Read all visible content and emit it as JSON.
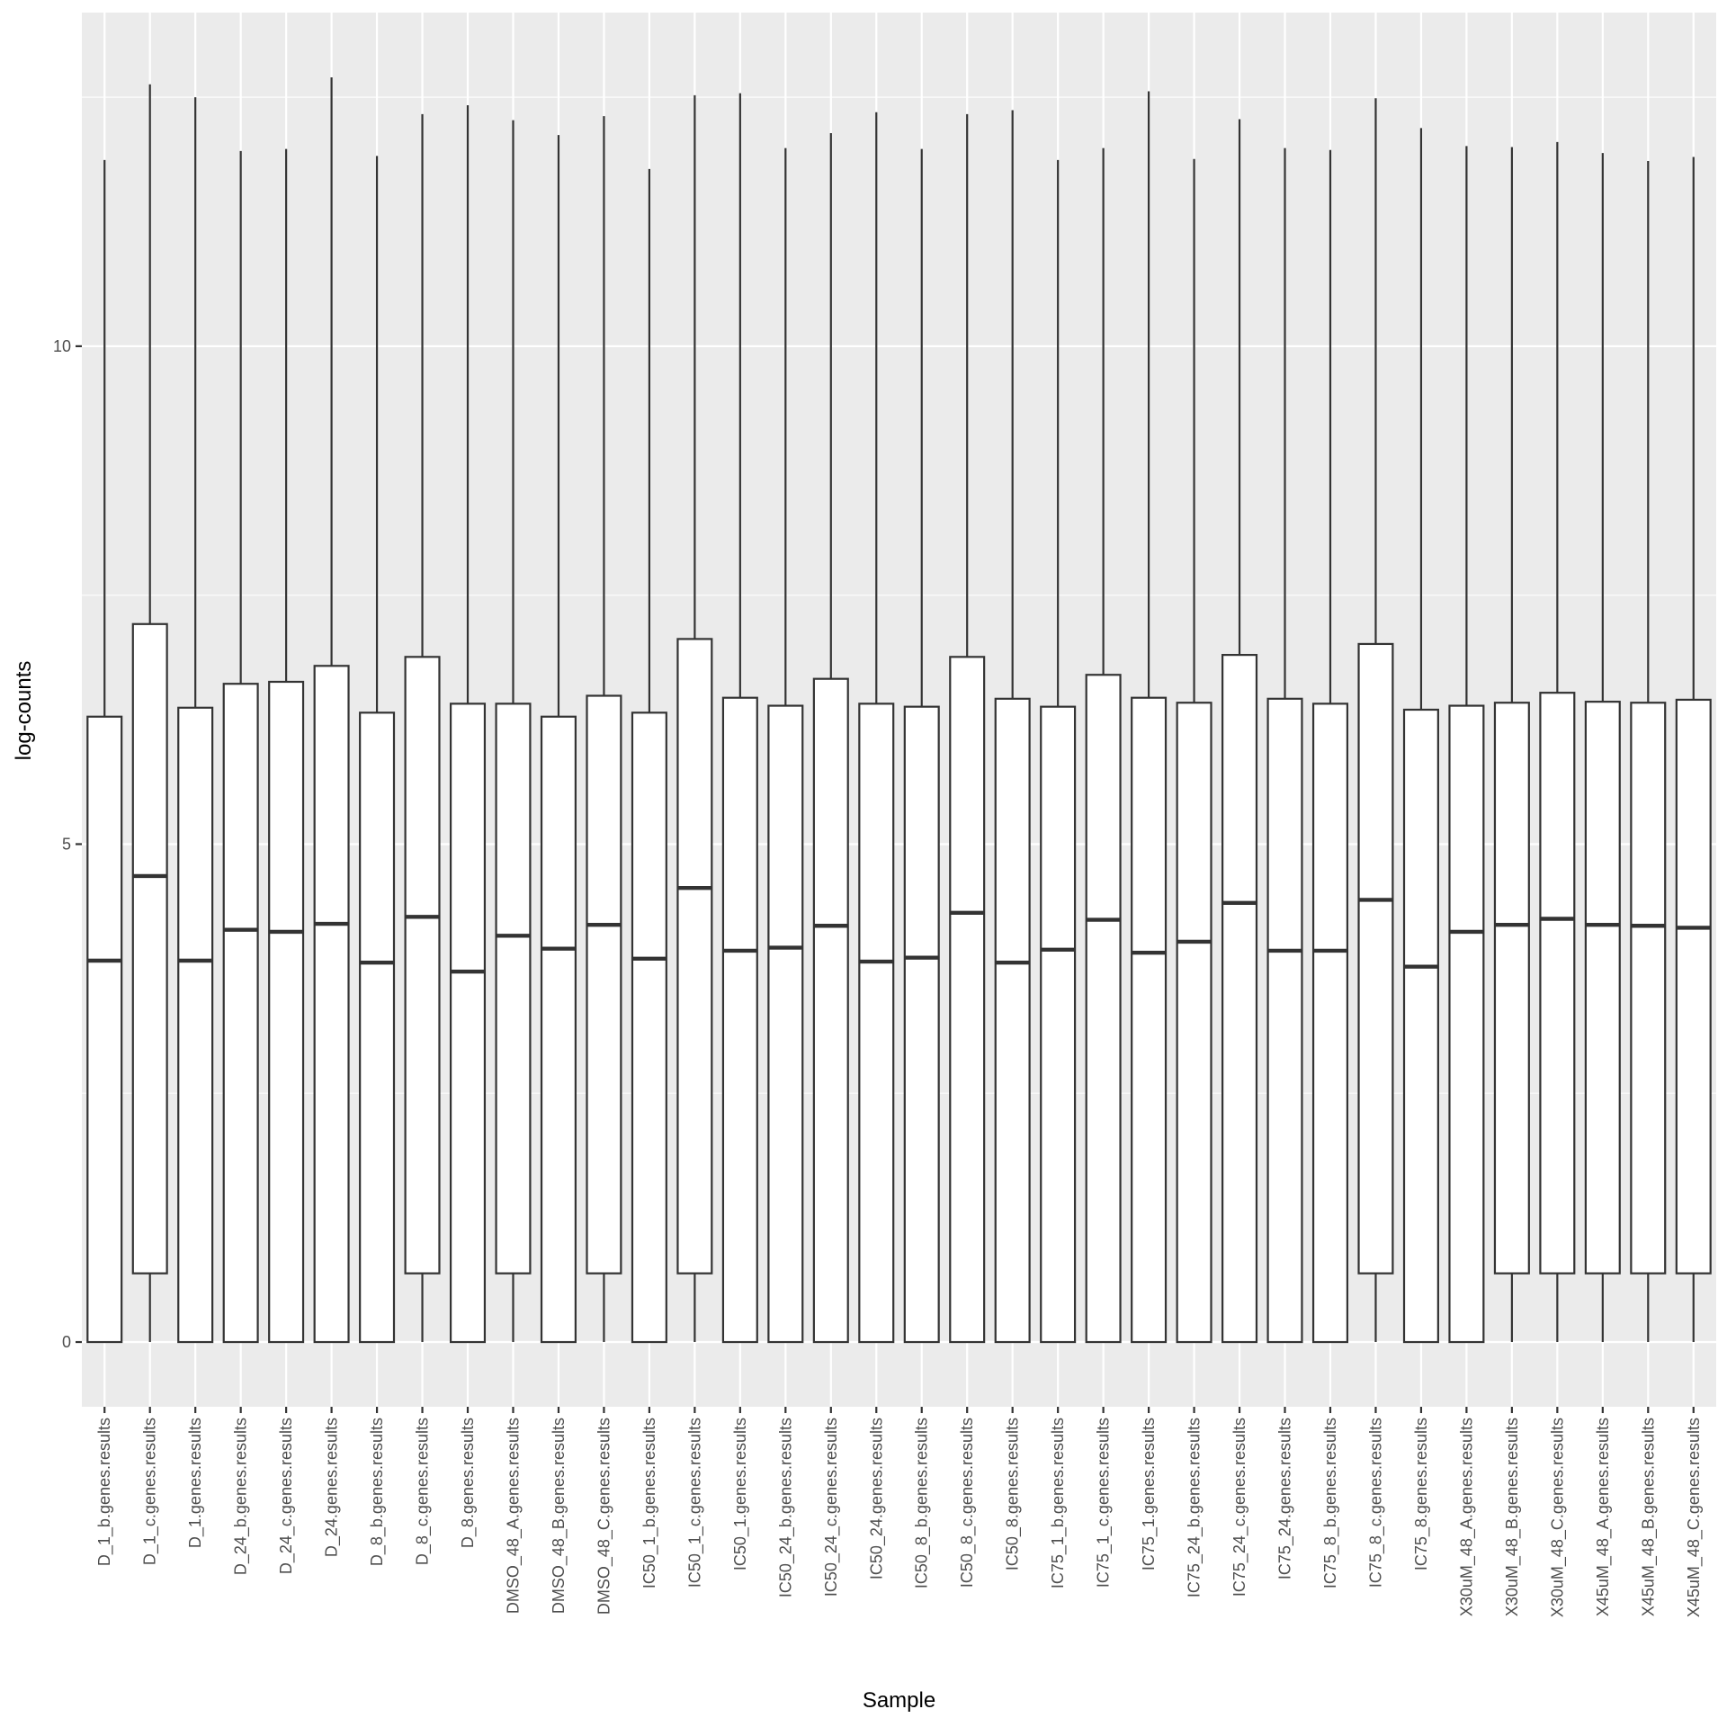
{
  "chart_data": {
    "type": "box",
    "xlabel": "Sample",
    "ylabel": "log-counts",
    "ylim": [
      -0.65,
      13.35
    ],
    "yticks": [
      0,
      5,
      10
    ],
    "grid": true,
    "legend": "none",
    "colors": {
      "panel": "#EBEBEB",
      "grid_major": "#FFFFFF",
      "box_fill": "#FFFFFF",
      "box_stroke": "#333333",
      "tick_text": "#4D4D4D",
      "axis_title": "#000000"
    },
    "categories": [
      "D_1_b.genes.results",
      "D_1_c.genes.results",
      "D_1.genes.results",
      "D_24_b.genes.results",
      "D_24_c.genes.results",
      "D_24.genes.results",
      "D_8_b.genes.results",
      "D_8_c.genes.results",
      "D_8.genes.results",
      "DMSO_48_A.genes.results",
      "DMSO_48_B.genes.results",
      "DMSO_48_C.genes.results",
      "IC50_1_b.genes.results",
      "IC50_1_c.genes.results",
      "IC50_1.genes.results",
      "IC50_24_b.genes.results",
      "IC50_24_c.genes.results",
      "IC50_24.genes.results",
      "IC50_8_b.genes.results",
      "IC50_8_c.genes.results",
      "IC50_8.genes.results",
      "IC75_1_b.genes.results",
      "IC75_1_c.genes.results",
      "IC75_1.genes.results",
      "IC75_24_b.genes.results",
      "IC75_24_c.genes.results",
      "IC75_24.genes.results",
      "IC75_8_b.genes.results",
      "IC75_8_c.genes.results",
      "IC75_8.genes.results",
      "X30uM_48_A.genes.results",
      "X30uM_48_B.genes.results",
      "X30uM_48_C.genes.results",
      "X45uM_48_A.genes.results",
      "X45uM_48_B.genes.results",
      "X45uM_48_C.genes.results"
    ],
    "boxes": [
      {
        "min": 0,
        "q1": 0,
        "median": 3.83,
        "q3": 6.28,
        "max": 11.87
      },
      {
        "min": 0,
        "q1": 0.69,
        "median": 4.68,
        "q3": 7.21,
        "max": 12.63
      },
      {
        "min": 0,
        "q1": 0,
        "median": 3.83,
        "q3": 6.37,
        "max": 12.5
      },
      {
        "min": 0,
        "q1": 0,
        "median": 4.14,
        "q3": 6.61,
        "max": 11.96
      },
      {
        "min": 0,
        "q1": 0,
        "median": 4.12,
        "q3": 6.63,
        "max": 11.98
      },
      {
        "min": 0,
        "q1": 0,
        "median": 4.2,
        "q3": 6.79,
        "max": 12.7
      },
      {
        "min": 0,
        "q1": 0,
        "median": 3.81,
        "q3": 6.32,
        "max": 11.91
      },
      {
        "min": 0,
        "q1": 0.69,
        "median": 4.27,
        "q3": 6.88,
        "max": 12.33
      },
      {
        "min": 0,
        "q1": 0,
        "median": 3.72,
        "q3": 6.41,
        "max": 12.42
      },
      {
        "min": 0,
        "q1": 0.69,
        "median": 4.08,
        "q3": 6.41,
        "max": 12.27
      },
      {
        "min": 0,
        "q1": 0,
        "median": 3.95,
        "q3": 6.28,
        "max": 12.12
      },
      {
        "min": 0,
        "q1": 0.69,
        "median": 4.19,
        "q3": 6.49,
        "max": 12.31
      },
      {
        "min": 0,
        "q1": 0,
        "median": 3.85,
        "q3": 6.32,
        "max": 11.78
      },
      {
        "min": 0,
        "q1": 0.69,
        "median": 4.56,
        "q3": 7.06,
        "max": 12.52
      },
      {
        "min": 0,
        "q1": 0,
        "median": 3.93,
        "q3": 6.47,
        "max": 12.54
      },
      {
        "min": 0,
        "q1": 0,
        "median": 3.96,
        "q3": 6.39,
        "max": 11.99
      },
      {
        "min": 0,
        "q1": 0,
        "median": 4.18,
        "q3": 6.66,
        "max": 12.14
      },
      {
        "min": 0,
        "q1": 0,
        "median": 3.82,
        "q3": 6.41,
        "max": 12.35
      },
      {
        "min": 0,
        "q1": 0,
        "median": 3.86,
        "q3": 6.38,
        "max": 11.98
      },
      {
        "min": 0,
        "q1": 0,
        "median": 4.31,
        "q3": 6.88,
        "max": 12.33
      },
      {
        "min": 0,
        "q1": 0,
        "median": 3.81,
        "q3": 6.46,
        "max": 12.37
      },
      {
        "min": 0,
        "q1": 0,
        "median": 3.94,
        "q3": 6.38,
        "max": 11.87
      },
      {
        "min": 0,
        "q1": 0,
        "median": 4.24,
        "q3": 6.7,
        "max": 11.99
      },
      {
        "min": 0,
        "q1": 0,
        "median": 3.91,
        "q3": 6.47,
        "max": 12.56
      },
      {
        "min": 0,
        "q1": 0,
        "median": 4.02,
        "q3": 6.42,
        "max": 11.88
      },
      {
        "min": 0,
        "q1": 0,
        "median": 4.41,
        "q3": 6.9,
        "max": 12.28
      },
      {
        "min": 0,
        "q1": 0,
        "median": 3.93,
        "q3": 6.46,
        "max": 11.99
      },
      {
        "min": 0,
        "q1": 0,
        "median": 3.93,
        "q3": 6.41,
        "max": 11.97
      },
      {
        "min": 0,
        "q1": 0.69,
        "median": 4.44,
        "q3": 7.01,
        "max": 12.49
      },
      {
        "min": 0,
        "q1": 0,
        "median": 3.77,
        "q3": 6.35,
        "max": 12.19
      },
      {
        "min": 0,
        "q1": 0,
        "median": 4.12,
        "q3": 6.39,
        "max": 12.01
      },
      {
        "min": 0,
        "q1": 0.69,
        "median": 4.19,
        "q3": 6.42,
        "max": 12.0
      },
      {
        "min": 0,
        "q1": 0.69,
        "median": 4.25,
        "q3": 6.52,
        "max": 12.05
      },
      {
        "min": 0,
        "q1": 0.69,
        "median": 4.19,
        "q3": 6.43,
        "max": 11.94
      },
      {
        "min": 0,
        "q1": 0.69,
        "median": 4.18,
        "q3": 6.42,
        "max": 11.86
      },
      {
        "min": 0,
        "q1": 0.69,
        "median": 4.16,
        "q3": 6.45,
        "max": 11.9
      }
    ]
  }
}
